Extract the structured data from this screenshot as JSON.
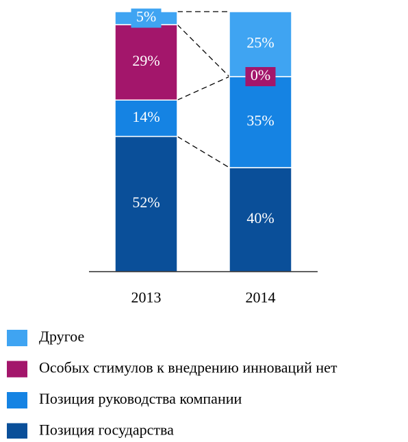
{
  "chart_data": {
    "type": "stacked_bar",
    "categories": [
      "2013",
      "2014"
    ],
    "ylim": [
      0,
      100
    ],
    "series": [
      {
        "name": "Позиция государства",
        "color": "#0a4f99",
        "values": [
          52,
          40
        ],
        "value_labels": [
          "52%",
          "40%"
        ]
      },
      {
        "name": "Позиция руководства компании",
        "color": "#1583e3",
        "values": [
          14,
          35
        ],
        "value_labels": [
          "14%",
          "35%"
        ]
      },
      {
        "name": "Особых стимулов к внедрению инноваций нет",
        "color": "#a3166b",
        "values": [
          29,
          0
        ],
        "value_labels": [
          "29%",
          "0%"
        ]
      },
      {
        "name": "Другое",
        "color": "#3fa4f2",
        "values": [
          5,
          25
        ],
        "value_labels": [
          "5%",
          "25%"
        ]
      }
    ],
    "legend": "bottom-left"
  }
}
